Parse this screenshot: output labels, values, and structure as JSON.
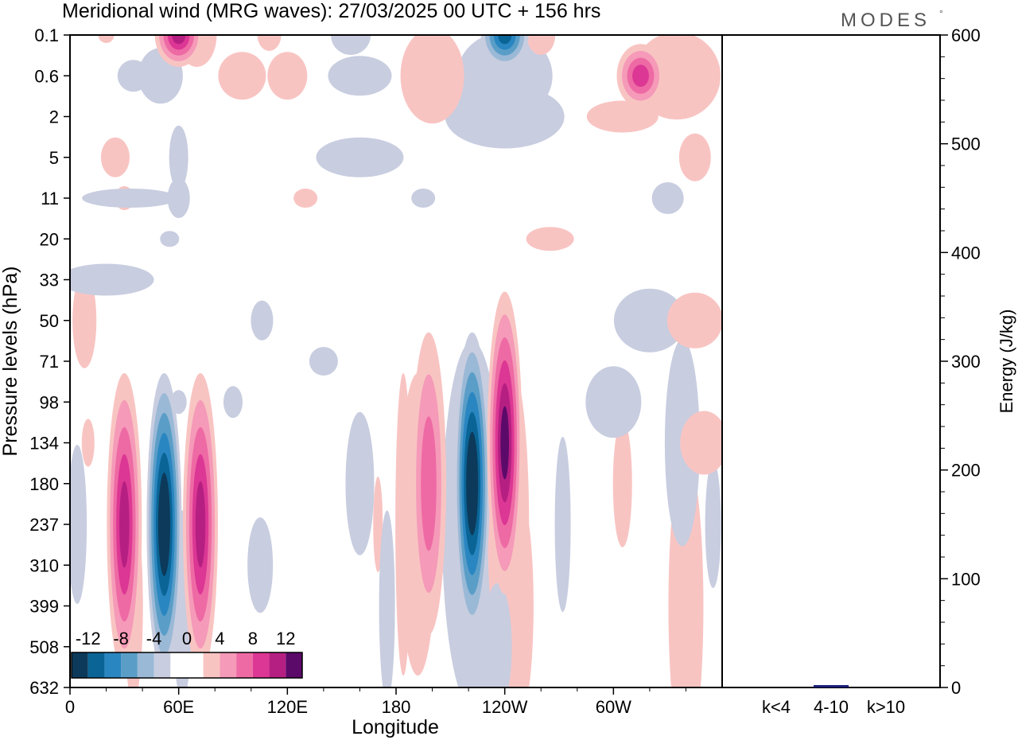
{
  "title": "Meridional wind (MRG waves):  27/03/2025  00 UTC  + 156 hrs",
  "brand": "MODES",
  "brand_mark": "°",
  "chart_data": [
    {
      "type": "heatmap",
      "title": "Meridional wind (MRG waves):  27/03/2025  00 UTC  + 156 hrs",
      "xlabel": "Longitude",
      "ylabel": "Pressure levels (hPa)",
      "x_ticks": [
        "0",
        "60E",
        "120E",
        "180",
        "120W",
        "60W"
      ],
      "x_tick_degrees": [
        0,
        60,
        120,
        180,
        240,
        300
      ],
      "xlim": [
        0,
        360
      ],
      "y_ticks": [
        "0.1",
        "0.6",
        "2",
        "5",
        "11",
        "20",
        "33",
        "50",
        "71",
        "98",
        "134",
        "180",
        "237",
        "310",
        "399",
        "508",
        "632"
      ],
      "colorbar": {
        "labels": [
          "-12",
          "-8",
          "-4",
          "0",
          "4",
          "8",
          "12"
        ],
        "levels": [
          -14,
          -12,
          -10,
          -8,
          -6,
          -4,
          -2,
          0,
          2,
          4,
          6,
          8,
          10,
          12,
          14
        ],
        "colors": [
          "#0d3a5a",
          "#0a6496",
          "#2a86c0",
          "#5a9ec8",
          "#9ab9d6",
          "#c8cde0",
          "#ffffff",
          "#ffffff",
          "#f8c4c2",
          "#f59ab8",
          "#ee6aa4",
          "#dc3794",
          "#b61f82",
          "#5c0a6a"
        ]
      },
      "features": [
        {
          "lon": 30,
          "level": "237",
          "sign": "positive",
          "peak": 10
        },
        {
          "lon": 52,
          "level": "237",
          "sign": "negative",
          "peak": -14
        },
        {
          "lon": 72,
          "level": "237",
          "sign": "positive",
          "peak": 10
        },
        {
          "lon": 198,
          "level": "180",
          "sign": "positive",
          "peak": 6
        },
        {
          "lon": 222,
          "level": "180",
          "sign": "negative",
          "peak": -14
        },
        {
          "lon": 240,
          "level": "134",
          "sign": "positive",
          "peak": 12
        },
        {
          "lon": 60,
          "level": "0.1",
          "sign": "positive",
          "peak": 10
        },
        {
          "lon": 240,
          "level": "0.1",
          "sign": "negative",
          "peak": -10
        },
        {
          "lon": 315,
          "level": "0.6",
          "sign": "positive",
          "peak": 8
        }
      ]
    },
    {
      "type": "bar",
      "ylabel": "Energy (J/kg)",
      "ylim": [
        0,
        600
      ],
      "y_ticks": [
        "0",
        "100",
        "200",
        "300",
        "400",
        "500",
        "600"
      ],
      "categories": [
        "k<4",
        "4-10",
        "k>10"
      ],
      "values": [
        0,
        2,
        0
      ],
      "bar_color": "#1a1f7a"
    }
  ]
}
